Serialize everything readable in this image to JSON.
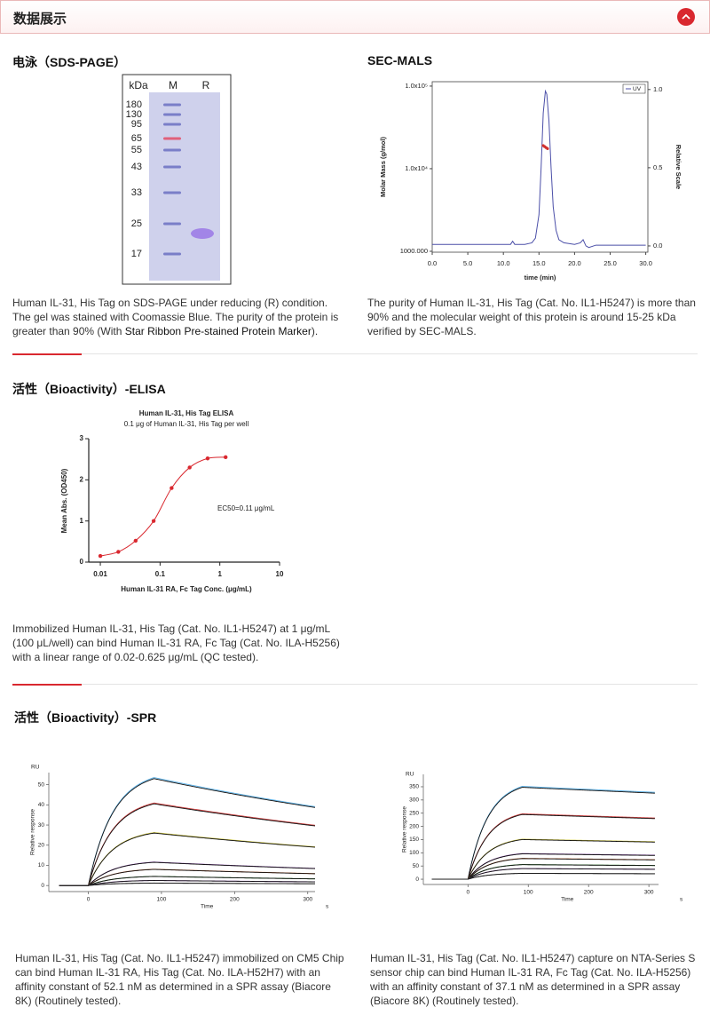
{
  "header": {
    "title": "数据展示"
  },
  "sds": {
    "title": "电泳（SDS-PAGE）",
    "gel": {
      "unit": "kDa",
      "lanes": [
        "M",
        "R"
      ],
      "markers": [
        180,
        130,
        95,
        65,
        55,
        43,
        33,
        25,
        17
      ]
    },
    "caption": [
      "Human IL-31, His Tag on SDS-PAGE under reducing (R) condition. The gel was stained with Coomassie Blue. The purity of the protein is greater than 90% (With ",
      "Star Ribbon Pre-stained Protein Marker",
      ")."
    ]
  },
  "sec": {
    "title": "SEC-MALS",
    "chart": {
      "type": "line",
      "xlabel": "time (min)",
      "ylabel": "Molar Mass (g/mol)",
      "y2label": "Relative Scale",
      "xlim": [
        0,
        30.3
      ],
      "xticks": [
        {
          "value": 0,
          "label": "0.0"
        },
        {
          "value": 5,
          "label": "5.0"
        },
        {
          "value": 10,
          "label": "10.0"
        },
        {
          "value": 15,
          "label": "15.0"
        },
        {
          "value": 20,
          "label": "20.0"
        },
        {
          "value": 25,
          "label": "25.0"
        },
        {
          "value": 30,
          "label": "30.0"
        }
      ],
      "log_y": true,
      "ylim": [
        975,
        113000
      ],
      "yticks": [
        {
          "value": 1000,
          "label": "1000.000"
        },
        {
          "value": 10000,
          "label": "1.0x10⁴"
        },
        {
          "value": 100000,
          "label": "1.0x10⁵"
        }
      ],
      "y2lim": [
        -0.04,
        1.05
      ],
      "y2ticks": [
        {
          "value": 0,
          "label": "0.0"
        },
        {
          "value": 0.5,
          "label": "0.5"
        },
        {
          "value": 1,
          "label": "1.0"
        }
      ],
      "series": [
        {
          "name": "UV",
          "color": "#4b4fa8",
          "axis": "y2",
          "x": [
            0,
            5,
            10,
            11,
            11.3,
            11.6,
            12,
            13,
            14,
            14.5,
            15,
            15.3,
            15.6,
            15.9,
            16.1,
            16.4,
            16.7,
            17,
            17.4,
            17.8,
            18.5,
            20,
            20.8,
            21.2,
            21.6,
            22,
            23,
            25,
            30
          ],
          "values": [
            0.01,
            0.01,
            0.01,
            0.01,
            0.03,
            0.01,
            0.01,
            0.01,
            0.02,
            0.05,
            0.2,
            0.5,
            0.85,
            0.99,
            0.97,
            0.8,
            0.5,
            0.25,
            0.1,
            0.04,
            0.02,
            0.01,
            0.02,
            0.04,
            0,
            -0.01,
            0.005,
            0.005,
            0.005
          ]
        },
        {
          "color": "#d0302f",
          "x": [
            15.6,
            15.8,
            16,
            16.2
          ],
          "values": [
            19000,
            18500,
            18000,
            17500
          ]
        }
      ]
    },
    "caption": "The purity of Human IL-31, His Tag (Cat. No. IL1-H5247) is more than 90% and the molecular weight of this protein is around 15-25 kDa verified by SEC-MALS."
  },
  "elisa": {
    "title": "活性（Bioactivity）-ELISA",
    "chart": {
      "type": "scatter",
      "title": "Human IL-31, His Tag ELISA",
      "subtitle": "0.1 μg of Human IL-31, His Tag per well",
      "xlabel": "Human IL-31 RA, Fc Tag Conc. (μg/mL)",
      "ylabel": "Mean Abs. (OD450)",
      "annotation": "EC50=0.11 μg/mL",
      "log_x": true,
      "xlim": [
        0.0064,
        10
      ],
      "xticks": [
        0.01,
        0.1,
        1,
        10
      ],
      "ylim": [
        0,
        3
      ],
      "yticks": [
        0,
        1,
        2,
        3
      ],
      "color": "#d9282f",
      "x": [
        0.01,
        0.02,
        0.039,
        0.078,
        0.156,
        0.3125,
        0.625,
        1.25
      ],
      "values": [
        0.15,
        0.25,
        0.52,
        1.0,
        1.8,
        2.3,
        2.52,
        2.55
      ]
    },
    "caption": "Immobilized Human IL-31, His Tag (Cat. No. IL1-H5247) at 1 μg/mL (100 μL/well) can bind Human IL-31 RA, Fc Tag (Cat. No. ILA-H5256) with a linear range of 0.02-0.625 μg/mL (QC tested)."
  },
  "spr": {
    "title": "活性（Bioactivity）-SPR",
    "charts": [
      {
        "type": "line",
        "yunit": "RU",
        "ylabel": "Relative response",
        "xlabel": "Time",
        "xunit": "s",
        "xlim": [
          -54,
          310
        ],
        "xticks": [
          0,
          100,
          200,
          300
        ],
        "ylim": [
          -3,
          56
        ],
        "yticks": [
          0,
          10,
          20,
          30,
          40,
          50
        ],
        "colors": [
          "#5fb3e8",
          "#d04040",
          "#c8c040",
          "#8040a0",
          "#c06030",
          "#3a8a3a",
          "#a060c0",
          "#808080"
        ],
        "peaks": [
          53,
          40.5,
          26,
          11.5,
          8,
          4.5,
          2.5,
          1.2
        ]
      },
      {
        "type": "line",
        "yunit": "RU",
        "ylabel": "Relative response",
        "xlabel": "Time",
        "xunit": "s",
        "xlim": [
          -74,
          316
        ],
        "xticks": [
          0,
          100,
          200,
          300
        ],
        "ylim": [
          -20,
          397
        ],
        "yticks": [
          0,
          50,
          100,
          150,
          200,
          250,
          300,
          350
        ],
        "colors": [
          "#5fb3e8",
          "#d04040",
          "#c8c040",
          "#8040a0",
          "#c06030",
          "#3a8a3a",
          "#a060c0",
          "#808080"
        ],
        "peaks": [
          348,
          245,
          150,
          96,
          78,
          55,
          40,
          22
        ]
      }
    ],
    "captions": [
      "Human IL-31, His Tag (Cat. No. IL1-H5247) immobilized on CM5 Chip can bind Human IL-31 RA, His Tag (Cat. No. ILA-H52H7) with an affinity constant of 52.1 nM as determined in a SPR assay (Biacore 8K) (Routinely tested).",
      "Human IL-31, His Tag (Cat. No. IL1-H5247) capture on NTA-Series S sensor chip can bind Human IL-31 RA, Fc Tag (Cat. No. ILA-H5256) with an affinity constant of 37.1 nM as determined in a SPR assay (Biacore 8K) (Routinely tested)."
    ]
  }
}
